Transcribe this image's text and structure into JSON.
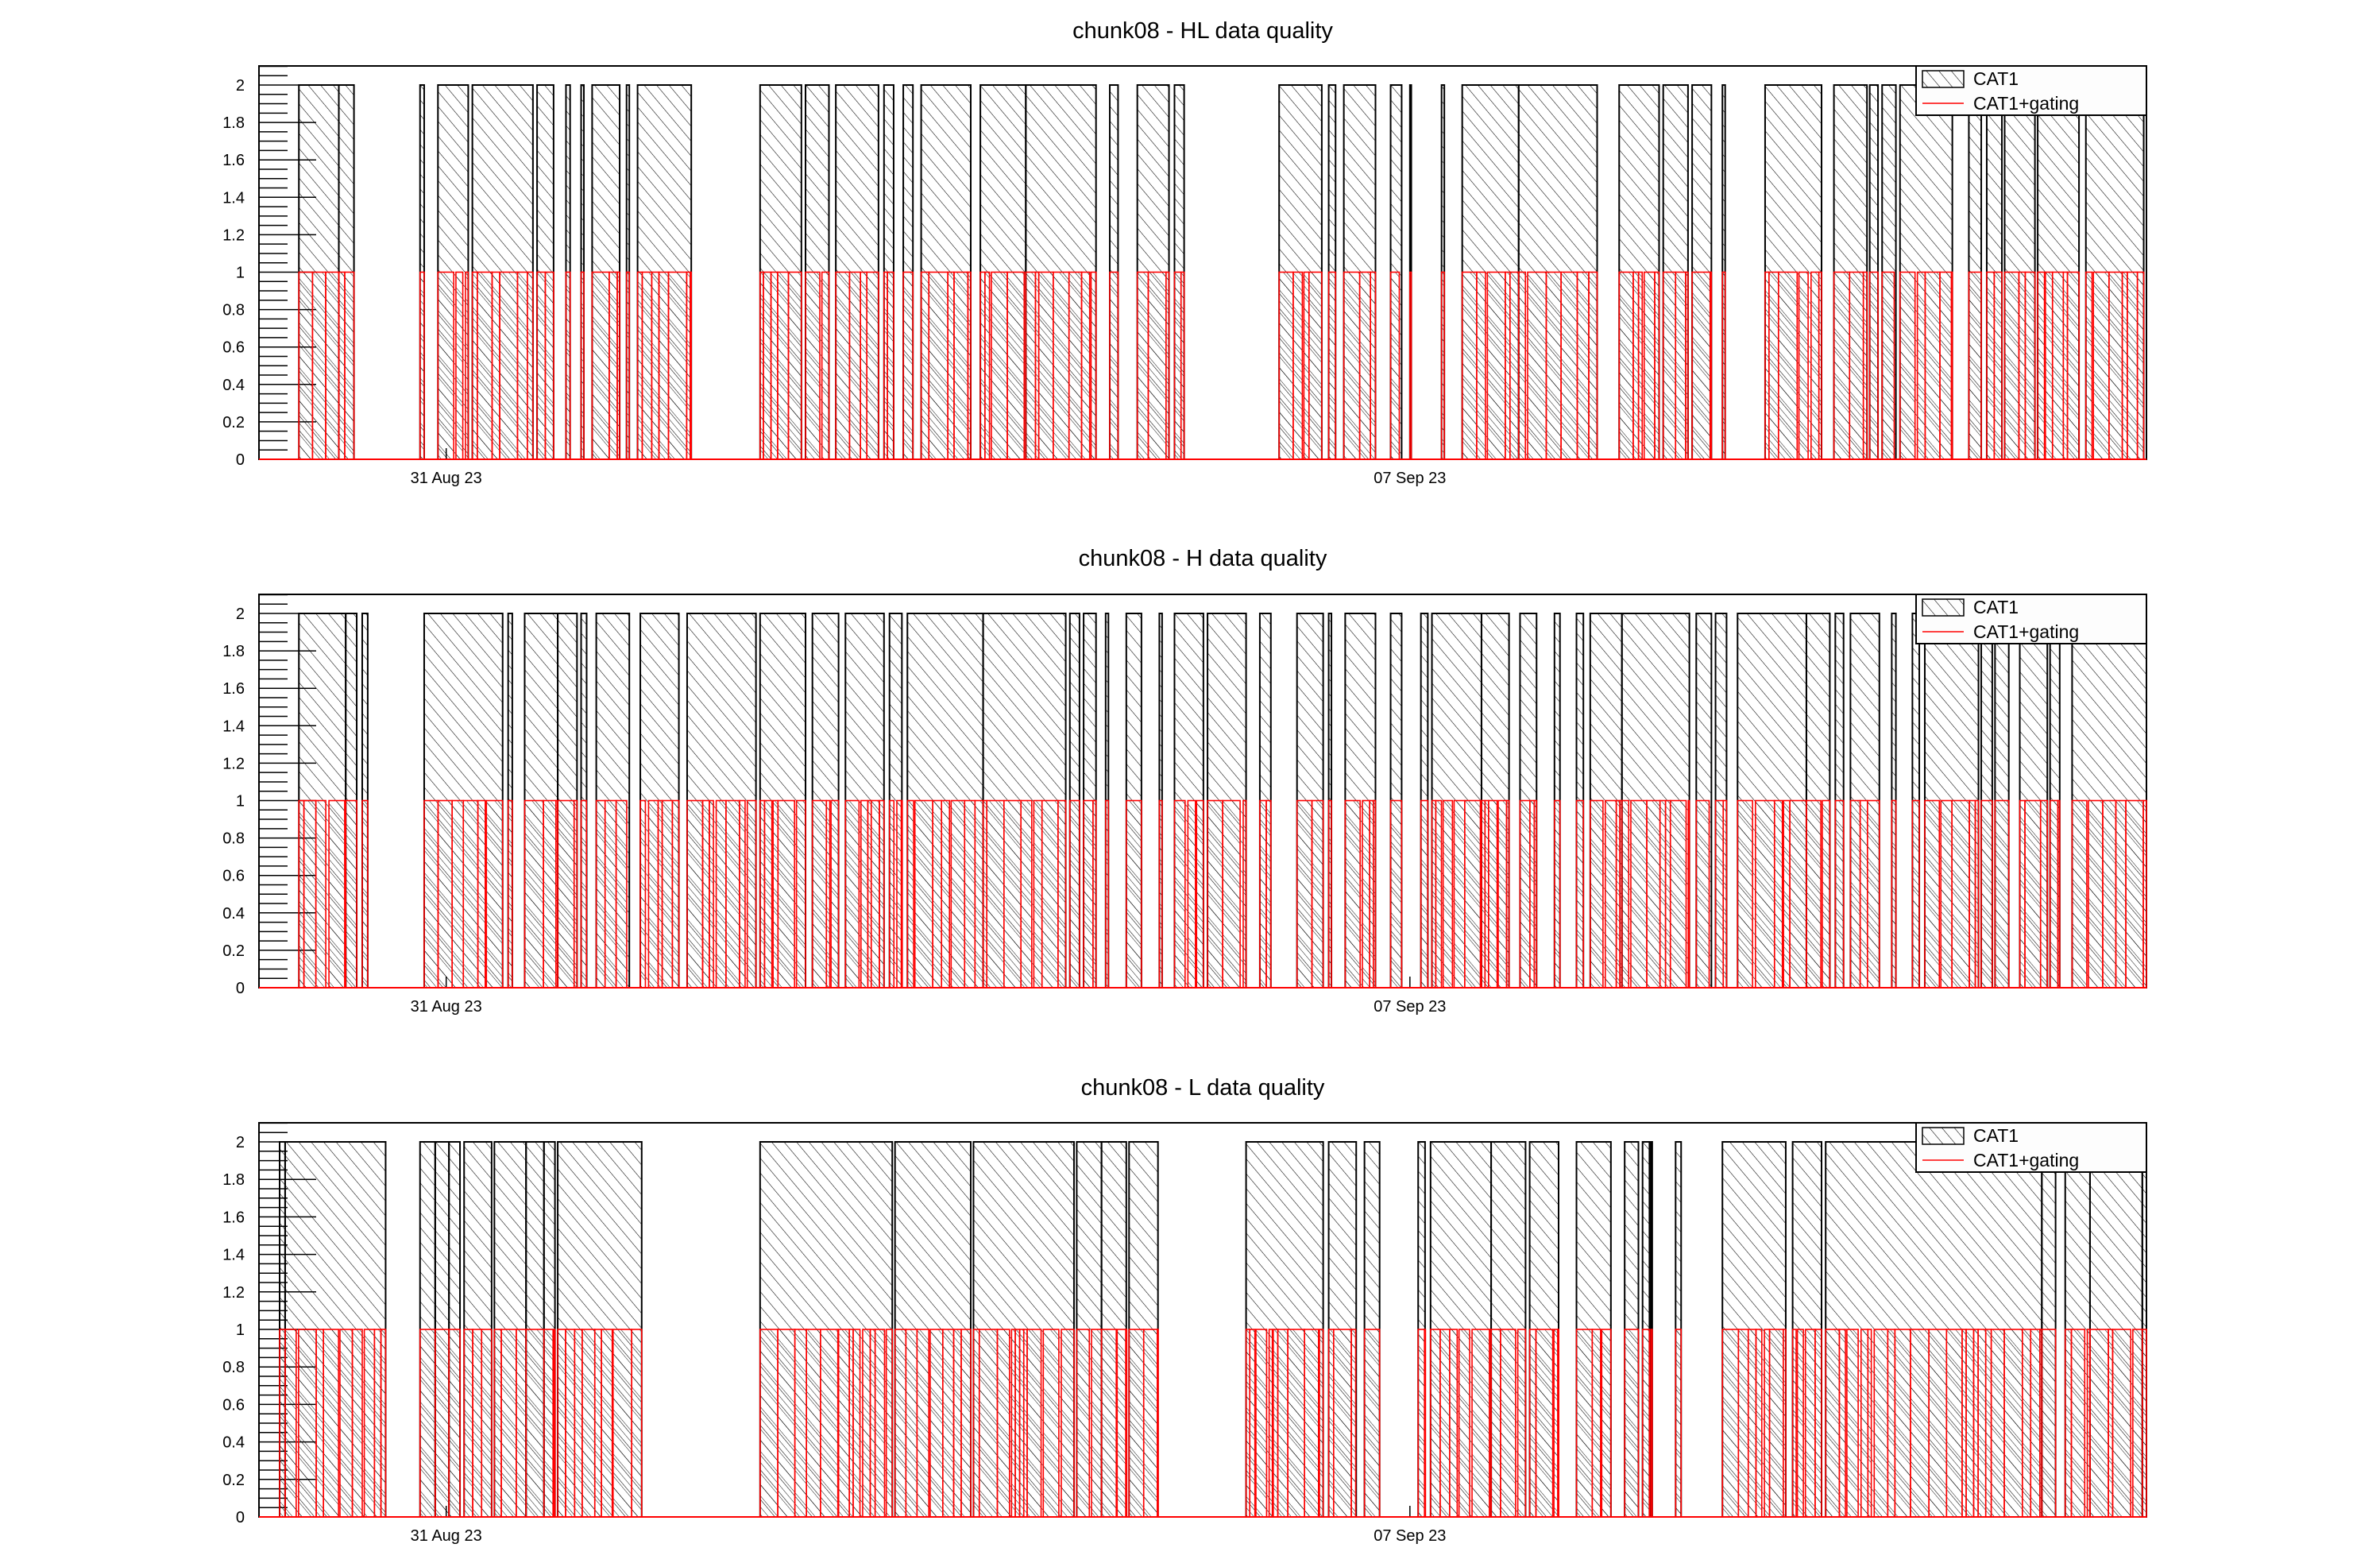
{
  "chart_data": [
    {
      "type": "bar",
      "title": "chunk08 - HL data quality",
      "xlabel": "",
      "ylabel": "",
      "ylim": [
        0,
        2.1
      ],
      "yticks": [
        "0",
        "0.2",
        "0.4",
        "0.6",
        "0.8",
        "1",
        "1.2",
        "1.4",
        "1.6",
        "1.8",
        "2"
      ],
      "x_axis": {
        "type": "time",
        "range_days_rel_31Aug": [
          -1.36,
          12.35
        ],
        "ticks": [
          {
            "label": "31 Aug 23",
            "day": 0
          },
          {
            "label": "07 Sep 23",
            "day": 7
          }
        ]
      },
      "legend": {
        "position": "top-right",
        "entries": [
          "CAT1",
          "CAT1+gating"
        ]
      },
      "series": [
        {
          "name": "CAT1",
          "value": 2,
          "segments_days": [
            [
              -1.07,
              -0.78
            ],
            [
              -0.78,
              -0.67
            ],
            [
              -0.19,
              -0.16
            ],
            [
              -0.06,
              0.16
            ],
            [
              0.19,
              0.63
            ],
            [
              0.66,
              0.78
            ],
            [
              0.87,
              0.9
            ],
            [
              0.98,
              1.0
            ],
            [
              1.06,
              1.26
            ],
            [
              1.31,
              1.33
            ],
            [
              1.39,
              1.78
            ],
            [
              2.28,
              2.58
            ],
            [
              2.61,
              2.78
            ],
            [
              2.83,
              3.14
            ],
            [
              3.18,
              3.25
            ],
            [
              3.32,
              3.39
            ],
            [
              3.45,
              3.81
            ],
            [
              3.88,
              4.21
            ],
            [
              4.21,
              4.72
            ],
            [
              4.82,
              4.88
            ],
            [
              5.02,
              5.25
            ],
            [
              5.29,
              5.36
            ],
            [
              6.05,
              6.36
            ],
            [
              6.41,
              6.46
            ],
            [
              6.52,
              6.75
            ],
            [
              6.86,
              6.94
            ],
            [
              7.0,
              7.01
            ],
            [
              7.23,
              7.25
            ],
            [
              7.38,
              7.79
            ],
            [
              7.79,
              8.36
            ],
            [
              8.52,
              8.81
            ],
            [
              8.84,
              9.02
            ],
            [
              9.05,
              9.19
            ],
            [
              9.27,
              9.29
            ],
            [
              9.58,
              9.99
            ],
            [
              10.08,
              10.32
            ],
            [
              10.34,
              10.4
            ],
            [
              10.43,
              10.53
            ],
            [
              10.56,
              10.94
            ],
            [
              11.06,
              11.15
            ],
            [
              11.19,
              11.3
            ],
            [
              11.32,
              11.54
            ],
            [
              11.56,
              11.86
            ],
            [
              11.91,
              12.33
            ]
          ]
        },
        {
          "name": "CAT1+gating",
          "value": 1,
          "segments_days": "same intervals as CAT1, subdivided by many short gating vetoes"
        }
      ]
    },
    {
      "type": "bar",
      "title": "chunk08 - H data quality",
      "xlabel": "",
      "ylabel": "",
      "ylim": [
        0,
        2.1
      ],
      "yticks": [
        "0",
        "0.2",
        "0.4",
        "0.6",
        "0.8",
        "1",
        "1.2",
        "1.4",
        "1.6",
        "1.8",
        "2"
      ],
      "x_axis": {
        "type": "time",
        "range_days_rel_31Aug": [
          -1.36,
          12.35
        ],
        "ticks": [
          {
            "label": "31 Aug 23",
            "day": 0
          },
          {
            "label": "07 Sep 23",
            "day": 7
          }
        ]
      },
      "legend": {
        "position": "top-right",
        "entries": [
          "CAT1",
          "CAT1+gating"
        ]
      },
      "series": [
        {
          "name": "CAT1",
          "value": 2,
          "segments_days": [
            [
              -1.07,
              -0.73
            ],
            [
              -0.73,
              -0.65
            ],
            [
              -0.61,
              -0.57
            ],
            [
              -0.16,
              0.41
            ],
            [
              0.45,
              0.48
            ],
            [
              0.57,
              0.81
            ],
            [
              0.81,
              0.95
            ],
            [
              0.98,
              1.02
            ],
            [
              1.09,
              1.33
            ],
            [
              1.41,
              1.69
            ],
            [
              1.75,
              2.25
            ],
            [
              2.28,
              2.61
            ],
            [
              2.66,
              2.85
            ],
            [
              2.9,
              3.18
            ],
            [
              3.22,
              3.31
            ],
            [
              3.35,
              3.9
            ],
            [
              3.9,
              4.5
            ],
            [
              4.53,
              4.6
            ],
            [
              4.63,
              4.72
            ],
            [
              4.79,
              4.81
            ],
            [
              4.94,
              5.05
            ],
            [
              5.18,
              5.2
            ],
            [
              5.29,
              5.5
            ],
            [
              5.53,
              5.81
            ],
            [
              5.91,
              5.99
            ],
            [
              6.18,
              6.37
            ],
            [
              6.41,
              6.43
            ],
            [
              6.53,
              6.75
            ],
            [
              6.86,
              6.94
            ],
            [
              7.08,
              7.13
            ],
            [
              7.16,
              7.52
            ],
            [
              7.52,
              7.72
            ],
            [
              7.8,
              7.92
            ],
            [
              8.05,
              8.09
            ],
            [
              8.21,
              8.26
            ],
            [
              8.31,
              8.54
            ],
            [
              8.54,
              9.03
            ],
            [
              9.08,
              9.19
            ],
            [
              9.22,
              9.3
            ],
            [
              9.38,
              9.88
            ],
            [
              9.88,
              10.05
            ],
            [
              10.09,
              10.15
            ],
            [
              10.2,
              10.41
            ],
            [
              10.5,
              10.53
            ],
            [
              10.65,
              10.7
            ],
            [
              10.74,
              11.13
            ],
            [
              11.15,
              11.23
            ],
            [
              11.25,
              11.35
            ],
            [
              11.43,
              11.63
            ],
            [
              11.65,
              11.72
            ],
            [
              11.81,
              12.35
            ]
          ]
        },
        {
          "name": "CAT1+gating",
          "value": 1,
          "segments_days": "same intervals as CAT1, subdivided by many short gating vetoes"
        }
      ]
    },
    {
      "type": "bar",
      "title": "chunk08 - L data quality",
      "xlabel": "",
      "ylabel": "",
      "ylim": [
        0,
        2.1
      ],
      "yticks": [
        "0",
        "0.2",
        "0.4",
        "0.6",
        "0.8",
        "1",
        "1.2",
        "1.4",
        "1.6",
        "1.8",
        "2"
      ],
      "x_axis": {
        "type": "time",
        "range_days_rel_31Aug": [
          -1.36,
          12.35
        ],
        "ticks": [
          {
            "label": "31 Aug 23",
            "day": 0
          },
          {
            "label": "07 Sep 23",
            "day": 7
          }
        ]
      },
      "legend": {
        "position": "top-right",
        "entries": [
          "CAT1",
          "CAT1+gating"
        ]
      },
      "series": [
        {
          "name": "CAT1",
          "value": 2,
          "segments_days": [
            [
              -1.21,
              -1.17
            ],
            [
              -1.17,
              -0.44
            ],
            [
              -0.19,
              -0.08
            ],
            [
              -0.08,
              0.02
            ],
            [
              0.02,
              0.1
            ],
            [
              0.13,
              0.33
            ],
            [
              0.35,
              0.58
            ],
            [
              0.58,
              0.71
            ],
            [
              0.71,
              0.79
            ],
            [
              0.81,
              1.42
            ],
            [
              2.28,
              3.24
            ],
            [
              3.26,
              3.81
            ],
            [
              3.83,
              4.56
            ],
            [
              4.58,
              4.76
            ],
            [
              4.76,
              4.94
            ],
            [
              4.96,
              5.17
            ],
            [
              5.81,
              6.37
            ],
            [
              6.41,
              6.61
            ],
            [
              6.67,
              6.78
            ],
            [
              7.06,
              7.11
            ],
            [
              7.15,
              7.59
            ],
            [
              7.59,
              7.84
            ],
            [
              7.87,
              8.08
            ],
            [
              8.21,
              8.46
            ],
            [
              8.56,
              8.66
            ],
            [
              8.69,
              8.74
            ],
            [
              8.75,
              8.76
            ],
            [
              8.93,
              8.97
            ],
            [
              9.27,
              9.73
            ],
            [
              9.78,
              9.99
            ],
            [
              10.02,
              11.59
            ],
            [
              11.59,
              11.69
            ],
            [
              11.76,
              11.94
            ],
            [
              11.94,
              12.32
            ],
            [
              12.32,
              12.35
            ]
          ]
        },
        {
          "name": "CAT1+gating",
          "value": 1,
          "segments_days": "same intervals as CAT1, subdivided by many short gating vetoes"
        }
      ]
    }
  ],
  "colors": {
    "cat1": "#000000",
    "gating": "#ff0000",
    "axis": "#000000",
    "background": "#ffffff"
  }
}
